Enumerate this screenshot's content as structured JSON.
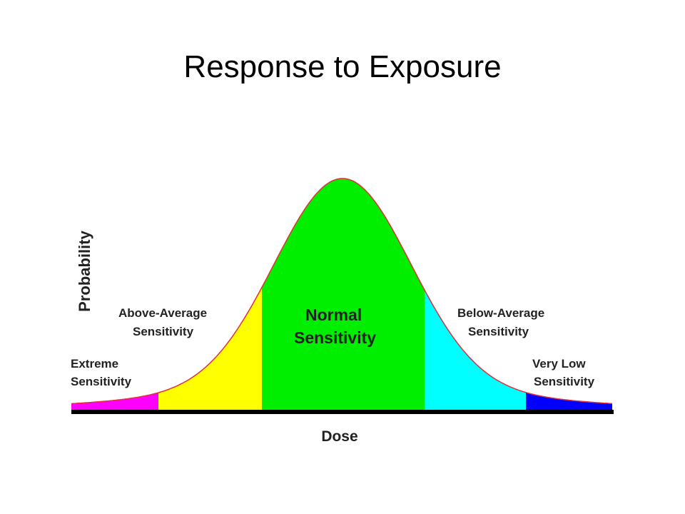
{
  "title": "Response to Exposure",
  "diagram": {
    "y_axis_label": "Probability",
    "x_axis_label": "Dose",
    "regions": [
      {
        "lines": [
          "Extreme",
          "Sensitivity"
        ]
      },
      {
        "lines": [
          "Above-Average",
          "Sensitivity"
        ]
      },
      {
        "lines": [
          "Normal",
          "Sensitivity"
        ]
      },
      {
        "lines": [
          "Below-Average",
          "Sensitivity"
        ]
      },
      {
        "lines": [
          "Very Low",
          "Sensitivity"
        ]
      }
    ]
  }
}
